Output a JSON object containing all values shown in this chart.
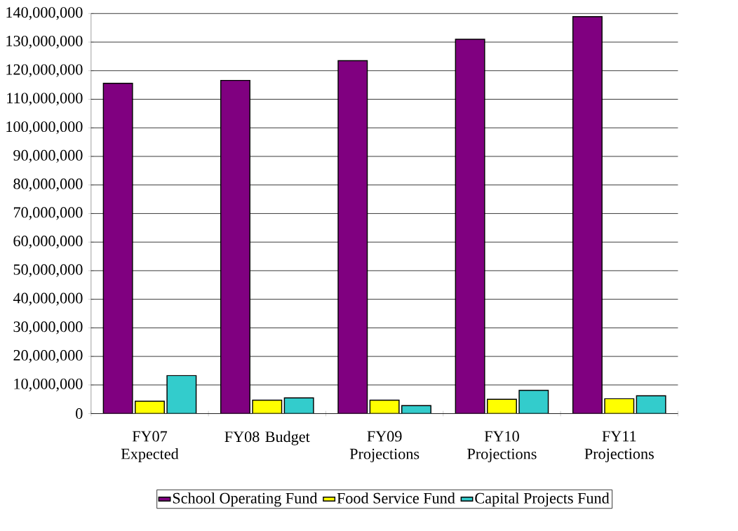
{
  "chart_data": {
    "type": "bar",
    "categories": [
      "FY07 Expected",
      "FY08 Budget",
      "FY09 Projections",
      "FY10 Projections",
      "FY11 Projections"
    ],
    "series": [
      {
        "name": "School Operating Fund",
        "color": "#800080",
        "values": [
          115600000,
          116600000,
          123500000,
          131000000,
          138900000
        ]
      },
      {
        "name": "Food Service Fund",
        "color": "#ffff00",
        "values": [
          4300000,
          4700000,
          4700000,
          5000000,
          5200000
        ]
      },
      {
        "name": "Capital Projects Fund",
        "color": "#33cccc",
        "values": [
          13300000,
          5500000,
          2800000,
          8100000,
          6200000
        ]
      }
    ],
    "ylim": [
      0,
      140000000
    ],
    "yticks": [
      0,
      {
        "value": 10000000,
        "label": "10,000,000"
      },
      {
        "value": 20000000,
        "label": "20,000,000"
      },
      {
        "value": 30000000,
        "label": "30,000,000"
      },
      {
        "value": 40000000,
        "label": "40,000,000"
      },
      {
        "value": 50000000,
        "label": "50,000,000"
      },
      {
        "value": 60000000,
        "label": "60,000,000"
      },
      {
        "value": 70000000,
        "label": "70,000,000"
      },
      {
        "value": 80000000,
        "label": "80,000,000"
      },
      {
        "value": 90000000,
        "label": "90,000,000"
      },
      {
        "value": 100000000,
        "label": "100,000,000"
      },
      {
        "value": 110000000,
        "label": "110,000,000"
      },
      {
        "value": 120000000,
        "label": "120,000,000"
      },
      {
        "value": 130000000,
        "label": "130,000,000"
      },
      {
        "value": 140000000,
        "label": "140,000,000"
      }
    ],
    "grid": "y",
    "legend": "bottom"
  }
}
